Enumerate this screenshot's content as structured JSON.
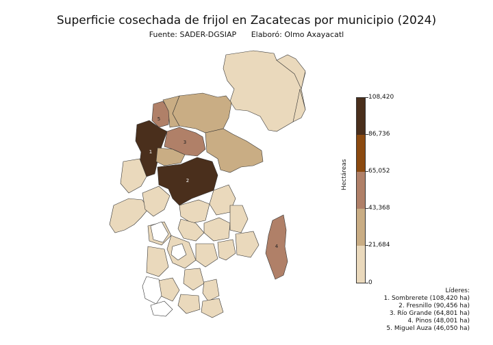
{
  "header": {
    "title": "Superficie cosechada de frijol en Zacatecas por municipio (2024)",
    "source": "Fuente: SADER-DGSIAP",
    "author": "Elaboró: Olmo Axayacatl"
  },
  "colorbar": {
    "label": "Hectáreas",
    "ticks": [
      "108,420",
      "86,736",
      "65,052",
      "43,368",
      "21,684",
      "0"
    ],
    "colors": [
      "#4a2f1c",
      "#8b4a10",
      "#b08068",
      "#c9ad84",
      "#ead9bc"
    ]
  },
  "map": {
    "markers": [
      "1",
      "2",
      "3",
      "4",
      "5"
    ]
  },
  "leaders": {
    "title": "Líderes:",
    "items": [
      "1. Sombrerete (108,420 ha)",
      "2. Fresnillo (90,456 ha)",
      "3. Río Grande (64,801 ha)",
      "4. Pinos (48,001 ha)",
      "5. Miguel Auza (46,050 ha)"
    ]
  }
}
